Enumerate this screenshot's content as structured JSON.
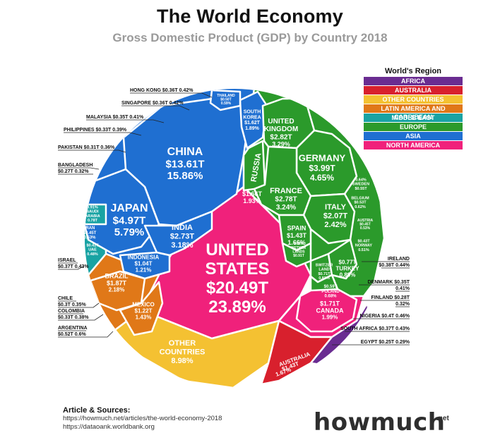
{
  "title": "The World Economy",
  "subtitle": "Gross Domestic Product (GDP) by Country 2018",
  "legend": {
    "title": "World's Region",
    "items": [
      {
        "name": "AFRICA",
        "color": "#6a2c91"
      },
      {
        "name": "AUSTRALIA",
        "color": "#d8202d"
      },
      {
        "name": "OTHER COUNTRIES",
        "color": "#f4c132"
      },
      {
        "name": "LATIN AMERICA AND CARRIBEAN",
        "color": "#e07818"
      },
      {
        "name": "MIDDLE EAST",
        "color": "#19a3a3"
      },
      {
        "name": "EUROPE",
        "color": "#2b9a2b"
      },
      {
        "name": "ASIA",
        "color": "#1f6fd1"
      },
      {
        "name": "NORTH AMERICA",
        "color": "#f0217b"
      }
    ]
  },
  "chart_data": {
    "type": "voronoi-treemap",
    "unit": "USD trillions (share of world GDP %)",
    "countries": [
      {
        "name": "UNITED STATES",
        "region": "NORTH AMERICA",
        "value": "$20.49T",
        "share": "23.89%"
      },
      {
        "name": "CHINA",
        "region": "ASIA",
        "value": "$13.61T",
        "share": "15.86%"
      },
      {
        "name": "JAPAN",
        "region": "ASIA",
        "value": "$4.97T",
        "share": "5.79%"
      },
      {
        "name": "GERMANY",
        "region": "EUROPE",
        "value": "$3.99T",
        "share": "4.65%"
      },
      {
        "name": "UNITED KINGDOM",
        "region": "EUROPE",
        "value": "$2.82T",
        "share": "3.29%"
      },
      {
        "name": "FRANCE",
        "region": "EUROPE",
        "value": "$2.78T",
        "share": "3.24%"
      },
      {
        "name": "INDIA",
        "region": "ASIA",
        "value": "$2.73T",
        "share": "3.18%"
      },
      {
        "name": "ITALY",
        "region": "EUROPE",
        "value": "$2.07T",
        "share": "2.42%"
      },
      {
        "name": "BRAZIL",
        "region": "LATIN AMERICA AND CARRIBEAN",
        "value": "$1.87T",
        "share": "2.18%"
      },
      {
        "name": "CANADA",
        "region": "NORTH AMERICA",
        "value": "$1.71T",
        "share": "1.99%"
      },
      {
        "name": "RUSSIA",
        "region": "EUROPE",
        "value": "$1.66T",
        "share": "1.93%"
      },
      {
        "name": "SOUTH KOREA",
        "region": "ASIA",
        "value": "$1.62T",
        "share": "1.89%"
      },
      {
        "name": "AUSTRALIA",
        "region": "AUSTRALIA",
        "value": "$1.43T",
        "share": "1.67%"
      },
      {
        "name": "SPAIN",
        "region": "EUROPE",
        "value": "$1.43T",
        "share": "1.66%"
      },
      {
        "name": "MEXICO",
        "region": "LATIN AMERICA AND CARRIBEAN",
        "value": "$1.22T",
        "share": "1.43%"
      },
      {
        "name": "INDONESIA",
        "region": "ASIA",
        "value": "$1.04T",
        "share": "1.21%"
      },
      {
        "name": "NETHERLANDS",
        "region": "EUROPE",
        "value": "$0.91T",
        "share": "1.06%"
      },
      {
        "name": "SAUDI ARABIA",
        "region": "MIDDLE EAST",
        "value": "$0.78T",
        "share": "0.91%"
      },
      {
        "name": "TURKEY",
        "region": "EUROPE",
        "value": "$0.77T",
        "share": "0.89%"
      },
      {
        "name": "SWITZERLAND",
        "region": "EUROPE",
        "value": "$0.71T",
        "share": "0.82%"
      },
      {
        "name": "POLAND",
        "region": "EUROPE",
        "value": "$0.59T",
        "share": "0.68%"
      },
      {
        "name": "SWEDEN",
        "region": "EUROPE",
        "value": "$0.55T",
        "share": "0.64%"
      },
      {
        "name": "BELGIUM",
        "region": "EUROPE",
        "value": "$0.53T",
        "share": "0.62%"
      },
      {
        "name": "ARGENTINA",
        "region": "LATIN AMERICA AND CARRIBEAN",
        "value": "$0.52T",
        "share": "0.6%"
      },
      {
        "name": "THAILAND",
        "region": "ASIA",
        "value": "$0.50T",
        "share": "0.59%"
      },
      {
        "name": "AUSTRIA",
        "region": "EUROPE",
        "value": "$0.45T",
        "share": "0.53%"
      },
      {
        "name": "IRAN",
        "region": "MIDDLE EAST",
        "value": "$0.45T",
        "share": "0.53%"
      },
      {
        "name": "NORWAY",
        "region": "EUROPE",
        "value": "$0.43T",
        "share": "0.51%"
      },
      {
        "name": "UAE",
        "region": "MIDDLE EAST",
        "value": "$0.41T",
        "share": "0.48%"
      },
      {
        "name": "NIGERIA",
        "region": "AFRICA",
        "value": "$0.4T",
        "share": "0.46%"
      },
      {
        "name": "IRELAND",
        "region": "EUROPE",
        "value": "$0.38T",
        "share": "0.44%"
      },
      {
        "name": "ISRAEL",
        "region": "MIDDLE EAST",
        "value": "$0.37T",
        "share": "0.43%"
      },
      {
        "name": "SOUTH AFRICA",
        "region": "AFRICA",
        "value": "$0.37T",
        "share": "0.43%"
      },
      {
        "name": "HONG KONG",
        "region": "ASIA",
        "value": "$0.36T",
        "share": "0.42%"
      },
      {
        "name": "SINGAPORE",
        "region": "ASIA",
        "value": "$0.36T",
        "share": "0.42%"
      },
      {
        "name": "MALAYSIA",
        "region": "ASIA",
        "value": "$0.35T",
        "share": "0.41%"
      },
      {
        "name": "DENMARK",
        "region": "EUROPE",
        "value": "$0.35T",
        "share": "0.41%"
      },
      {
        "name": "PHILIPPINES",
        "region": "ASIA",
        "value": "$0.33T",
        "share": "0.39%"
      },
      {
        "name": "PAKISTAN",
        "region": "ASIA",
        "value": "$0.31T",
        "share": "0.36%"
      },
      {
        "name": "CHILE",
        "region": "LATIN AMERICA AND CARRIBEAN",
        "value": "$0.3T",
        "share": "0.35%"
      },
      {
        "name": "COLOMBIA",
        "region": "LATIN AMERICA AND CARRIBEAN",
        "value": "$0.33T",
        "share": "0.38%"
      },
      {
        "name": "BANGLADESH",
        "region": "ASIA",
        "value": "$0.27T",
        "share": "0.32%"
      },
      {
        "name": "FINLAND",
        "region": "EUROPE",
        "value": "$0.28T",
        "share": "0.32%"
      },
      {
        "name": "EGYPT",
        "region": "AFRICA",
        "value": "$0.25T",
        "share": "0.29%"
      },
      {
        "name": "OTHER COUNTRIES",
        "region": "OTHER COUNTRIES",
        "value": "",
        "share": "8.98%"
      }
    ]
  },
  "cell_labels": {
    "us": [
      "UNITED",
      "STATES",
      "$20.49T",
      "23.89%"
    ],
    "china": [
      "CHINA",
      "$13.61T",
      "15.86%"
    ],
    "japan": [
      "JAPAN",
      "$4.97T",
      "5.79%"
    ],
    "germany": [
      "GERMANY",
      "$3.99T",
      "4.65%"
    ],
    "uk": [
      "UNITED",
      "KINGDOM",
      "$2.82T",
      "3.29%"
    ],
    "france": [
      "FRANCE",
      "$2.78T",
      "3.24%"
    ],
    "india": [
      "INDIA",
      "$2.73T",
      "3.18%"
    ],
    "italy": [
      "ITALY",
      "$2.07T",
      "2.42%"
    ],
    "brazil": [
      "BRAZIL",
      "$1.87T",
      "2.18%"
    ],
    "canada": [
      "$1.71T",
      "CANADA",
      "1.99%"
    ],
    "russia": "RUSSIA",
    "russia_val": [
      "$1.66T",
      "1.93%"
    ],
    "korea": [
      "SOUTH",
      "KOREA",
      "$1.62T",
      "1.89%"
    ],
    "australia": [
      "AUSTRALIA",
      "$1.43T",
      "1.67%"
    ],
    "spain": [
      "SPAIN",
      "$1.43T",
      "1.66%"
    ],
    "mexico": [
      "MEXICO",
      "$1.22T",
      "1.43%"
    ],
    "indonesia": [
      "INDONESIA",
      "$1.04T",
      "1.21%"
    ],
    "other": [
      "OTHER",
      "COUNTRIES",
      "8.98%"
    ],
    "thailand": [
      "THAILAND",
      "$0.50T",
      "0.59%"
    ],
    "netherlands": [
      "1.06%",
      "NETHER",
      "LANDS",
      "$0.91T"
    ],
    "turkey": [
      "$0.77T",
      "TURKEY",
      "0.89%"
    ],
    "switzerland": [
      "SWITZER",
      "LAND",
      "$0.71T",
      "0.82%"
    ],
    "poland": [
      "$0.59T",
      "POLAND",
      "0.68%"
    ],
    "sweden": [
      "0.64%",
      "SWEDEN",
      "$0.55T"
    ],
    "belgium": [
      "BELGIUM",
      "$0.53T",
      "0.62%"
    ],
    "austria": [
      "AUSTRIA",
      "$0.45T",
      "0.53%"
    ],
    "norway": [
      "$0.43T",
      "NORWAY",
      "0.51%"
    ],
    "saudi": [
      "0.91%",
      "SAUDI",
      "ARABIA",
      "0.78T"
    ],
    "iran": [
      "IRAN",
      "$0.45T",
      "0.53%"
    ],
    "uae": [
      "$0.41T",
      "UAE",
      "0.48%"
    ]
  },
  "callouts": {
    "hong_kong": "HONG KONG $0.36T 0.42%",
    "singapore": "SINGAPORE $0.36T 0.42%",
    "malaysia": "MALAYSIA $0.35T 0.41%",
    "philippines": "PHILIPPINES $0.33T 0.39%",
    "pakistan": "PAKISTAN $0.31T 0.36%",
    "bangladesh_1": "BANGLADESH",
    "bangladesh_2": "$0.27T 0.32%",
    "israel_1": "ISRAEL",
    "israel_2": "$0.37T 0.43%",
    "chile_1": "CHILE",
    "chile_2": "$0.3T 0.35%",
    "colombia_1": "COLOMBIA",
    "colombia_2": "$0.33T 0.38%",
    "argentina_1": "ARGENTINA",
    "argentina_2": "$0.52T 0.6%",
    "ireland_1": "IRELAND",
    "ireland_2": "$0.38T 0.44%",
    "denmark_1": "DENMARK $0.35T",
    "denmark_2": "0.41%",
    "finland_1": "FINLAND $0.28T",
    "finland_2": "0.32%",
    "nigeria": "NIGERIA $0.4T 0.46%",
    "south_africa": "SOUTH AFRICA $0.37T 0.43%",
    "egypt": "EGYPT $0.25T 0.29%"
  },
  "sources": {
    "title": "Article & Sources:",
    "line1": "https://howmuch.net/articles/the-world-economy-2018",
    "line2": "https://dataoank.worldbank.org"
  },
  "brand": {
    "name": "howmuch",
    "tld": ".net"
  }
}
